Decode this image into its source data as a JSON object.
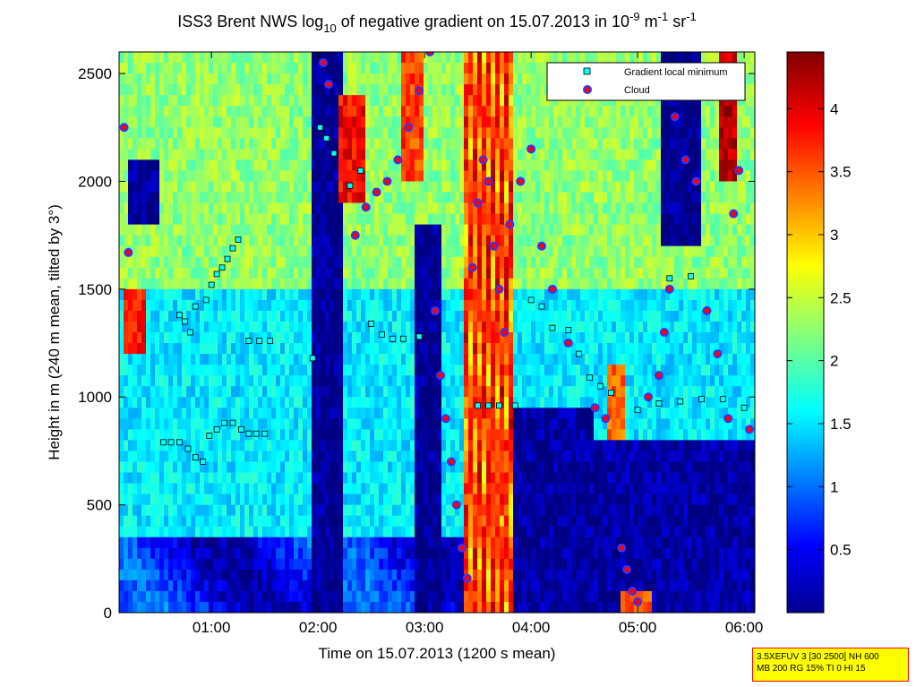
{
  "chart_data": {
    "type": "heatmap",
    "title_main": "ISS3 Brent NWS log",
    "title_sub": "10",
    "title_mid": " of negative gradient on 15.07.2013 in 10",
    "title_exp1": "-9",
    "title_unit1": " m",
    "title_exp2": "-1",
    "title_unit2": " sr",
    "title_exp3": "-1",
    "xlabel": "Time on 15.07.2013 (1200 s mean)",
    "ylabel": "Height in m (240 m mean, tilted by 3°)",
    "x_range_hours": [
      0.133,
      6.1
    ],
    "y_range": [
      0,
      2600
    ],
    "x_ticks": [
      {
        "value": 1,
        "label": "01:00"
      },
      {
        "value": 2,
        "label": "02:00"
      },
      {
        "value": 3,
        "label": "03:00"
      },
      {
        "value": 4,
        "label": "04:00"
      },
      {
        "value": 5,
        "label": "05:00"
      },
      {
        "value": 6,
        "label": "06:00"
      }
    ],
    "y_ticks": [
      0,
      500,
      1000,
      1500,
      2000,
      2500
    ],
    "colorbar_range": [
      0,
      4.45
    ],
    "colorbar_ticks": [
      "0.5",
      "1",
      "1.5",
      "2",
      "2.5",
      "3",
      "3.5",
      "4"
    ],
    "colormap": "jet",
    "legend_placement": "top-right",
    "legend": [
      {
        "label": "Gradient local minimum",
        "marker": "square",
        "color": "#00ffff"
      },
      {
        "label": "Cloud",
        "marker": "circle",
        "color": "#ff0000",
        "edge": "#0000ff"
      }
    ],
    "gradient_minima": [
      [
        0.55,
        790
      ],
      [
        0.62,
        790
      ],
      [
        0.7,
        790
      ],
      [
        0.78,
        760
      ],
      [
        0.85,
        720
      ],
      [
        0.92,
        700
      ],
      [
        0.98,
        820
      ],
      [
        1.05,
        850
      ],
      [
        1.12,
        880
      ],
      [
        1.2,
        880
      ],
      [
        1.28,
        850
      ],
      [
        1.35,
        830
      ],
      [
        1.42,
        830
      ],
      [
        1.5,
        830
      ],
      [
        0.7,
        1380
      ],
      [
        0.75,
        1350
      ],
      [
        0.8,
        1300
      ],
      [
        0.85,
        1420
      ],
      [
        0.95,
        1450
      ],
      [
        1.0,
        1520
      ],
      [
        1.05,
        1570
      ],
      [
        1.1,
        1600
      ],
      [
        1.15,
        1640
      ],
      [
        1.2,
        1690
      ],
      [
        1.25,
        1730
      ],
      [
        1.35,
        1260
      ],
      [
        1.45,
        1260
      ],
      [
        1.55,
        1260
      ],
      [
        1.95,
        1180
      ],
      [
        2.02,
        2250
      ],
      [
        2.08,
        2200
      ],
      [
        2.15,
        2130
      ],
      [
        2.3,
        1980
      ],
      [
        2.4,
        2050
      ],
      [
        2.5,
        1340
      ],
      [
        2.6,
        1290
      ],
      [
        2.7,
        1270
      ],
      [
        2.8,
        1270
      ],
      [
        2.95,
        1280
      ],
      [
        3.5,
        960
      ],
      [
        3.6,
        960
      ],
      [
        3.7,
        960
      ],
      [
        3.85,
        960
      ],
      [
        4.0,
        1450
      ],
      [
        4.1,
        1420
      ],
      [
        4.2,
        1320
      ],
      [
        4.35,
        1310
      ],
      [
        4.45,
        1200
      ],
      [
        4.55,
        1090
      ],
      [
        4.65,
        1050
      ],
      [
        4.75,
        1020
      ],
      [
        5.0,
        940
      ],
      [
        5.2,
        970
      ],
      [
        5.4,
        980
      ],
      [
        5.6,
        990
      ],
      [
        5.8,
        990
      ],
      [
        6.0,
        950
      ],
      [
        5.3,
        1550
      ],
      [
        5.5,
        1560
      ]
    ],
    "clouds": [
      [
        0.18,
        2250
      ],
      [
        0.22,
        1670
      ],
      [
        2.05,
        2550
      ],
      [
        2.1,
        2450
      ],
      [
        2.35,
        1750
      ],
      [
        2.45,
        1880
      ],
      [
        2.55,
        1950
      ],
      [
        2.65,
        2000
      ],
      [
        2.75,
        2100
      ],
      [
        2.85,
        2250
      ],
      [
        2.95,
        2420
      ],
      [
        3.05,
        2600
      ],
      [
        3.1,
        1400
      ],
      [
        3.15,
        1100
      ],
      [
        3.2,
        900
      ],
      [
        3.25,
        700
      ],
      [
        3.3,
        500
      ],
      [
        3.35,
        300
      ],
      [
        3.4,
        160
      ],
      [
        3.45,
        1600
      ],
      [
        3.5,
        1900
      ],
      [
        3.55,
        2100
      ],
      [
        3.6,
        2000
      ],
      [
        3.65,
        1700
      ],
      [
        3.7,
        1500
      ],
      [
        3.75,
        1300
      ],
      [
        3.8,
        1800
      ],
      [
        3.9,
        2000
      ],
      [
        4.0,
        2150
      ],
      [
        4.1,
        1700
      ],
      [
        4.2,
        1500
      ],
      [
        4.35,
        1250
      ],
      [
        4.6,
        950
      ],
      [
        4.7,
        900
      ],
      [
        4.85,
        300
      ],
      [
        4.9,
        200
      ],
      [
        4.95,
        100
      ],
      [
        5.0,
        50
      ],
      [
        5.1,
        1000
      ],
      [
        5.2,
        1100
      ],
      [
        5.25,
        1300
      ],
      [
        5.3,
        1500
      ],
      [
        5.35,
        2300
      ],
      [
        5.45,
        2100
      ],
      [
        5.55,
        2000
      ],
      [
        5.65,
        1400
      ],
      [
        5.75,
        1200
      ],
      [
        5.85,
        900
      ],
      [
        5.9,
        1850
      ],
      [
        5.95,
        2050
      ],
      [
        6.05,
        850
      ]
    ]
  },
  "info_box": {
    "line1": "3.5XEFUV 3 [30 2500] NH 600",
    "line2": "MB 200 RG 15% TI 0 HI 15"
  }
}
